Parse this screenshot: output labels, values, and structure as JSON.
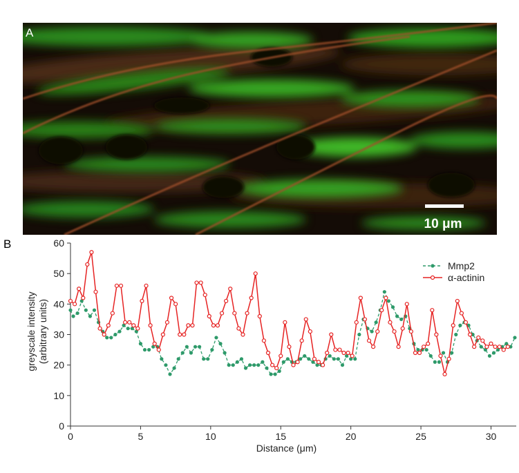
{
  "panel_a": {
    "letter": "A",
    "scale_bar_label": "10 μm"
  },
  "panel_b": {
    "letter": "B"
  },
  "chart_data": {
    "type": "line",
    "xlabel": "Distance (μm)",
    "ylabel_lines": [
      "greyscale intensity",
      "(arbitrary units)"
    ],
    "xlim": [
      0,
      31.8
    ],
    "ylim": [
      0,
      60
    ],
    "xticks": [
      0,
      5,
      10,
      15,
      20,
      25,
      30
    ],
    "yticks": [
      0,
      10,
      20,
      30,
      40,
      50,
      60
    ],
    "grid": false,
    "legend_position": "top-right",
    "series": [
      {
        "name": "Mmp2",
        "color": "#2e9a6a",
        "style": "dashed",
        "marker": "filled-circle",
        "points": [
          [
            0,
            38
          ],
          [
            0.2,
            36
          ],
          [
            0.5,
            37
          ],
          [
            0.8,
            41
          ],
          [
            1.1,
            38
          ],
          [
            1.4,
            36
          ],
          [
            1.7,
            38
          ],
          [
            2,
            34
          ],
          [
            2.3,
            31
          ],
          [
            2.6,
            29
          ],
          [
            2.9,
            29
          ],
          [
            3.2,
            30
          ],
          [
            3.5,
            31
          ],
          [
            3.8,
            33
          ],
          [
            4.1,
            32
          ],
          [
            4.4,
            32
          ],
          [
            4.7,
            31
          ],
          [
            5,
            27
          ],
          [
            5.3,
            25
          ],
          [
            5.6,
            25
          ],
          [
            5.9,
            26
          ],
          [
            6.2,
            26
          ],
          [
            6.5,
            22
          ],
          [
            6.8,
            20
          ],
          [
            7.1,
            17
          ],
          [
            7.4,
            19
          ],
          [
            7.7,
            22
          ],
          [
            8,
            24
          ],
          [
            8.3,
            26
          ],
          [
            8.6,
            24
          ],
          [
            8.9,
            26
          ],
          [
            9.2,
            26
          ],
          [
            9.5,
            22
          ],
          [
            9.8,
            22
          ],
          [
            10.1,
            25
          ],
          [
            10.4,
            29
          ],
          [
            10.7,
            27
          ],
          [
            11,
            24
          ],
          [
            11.3,
            20
          ],
          [
            11.6,
            20
          ],
          [
            11.9,
            21
          ],
          [
            12.2,
            22
          ],
          [
            12.5,
            19
          ],
          [
            12.8,
            20
          ],
          [
            13.1,
            20
          ],
          [
            13.4,
            20
          ],
          [
            13.7,
            21
          ],
          [
            14,
            19
          ],
          [
            14.3,
            17
          ],
          [
            14.6,
            17
          ],
          [
            14.9,
            18
          ],
          [
            15.2,
            21
          ],
          [
            15.5,
            22
          ],
          [
            15.8,
            21
          ],
          [
            16.1,
            21
          ],
          [
            16.4,
            22
          ],
          [
            16.7,
            23
          ],
          [
            17,
            22
          ],
          [
            17.3,
            21
          ],
          [
            17.6,
            20
          ],
          [
            17.9,
            20
          ],
          [
            18.2,
            22
          ],
          [
            18.5,
            23
          ],
          [
            18.8,
            22
          ],
          [
            19.1,
            22
          ],
          [
            19.4,
            20
          ],
          [
            19.7,
            23
          ],
          [
            20,
            22
          ],
          [
            20.3,
            22
          ],
          [
            20.6,
            30
          ],
          [
            20.9,
            35
          ],
          [
            21.2,
            32
          ],
          [
            21.5,
            31
          ],
          [
            21.8,
            34
          ],
          [
            22.1,
            38
          ],
          [
            22.4,
            44
          ],
          [
            22.7,
            41
          ],
          [
            23,
            39
          ],
          [
            23.3,
            36
          ],
          [
            23.6,
            35
          ],
          [
            23.9,
            36
          ],
          [
            24.2,
            32
          ],
          [
            24.5,
            27
          ],
          [
            24.8,
            25
          ],
          [
            25.1,
            25
          ],
          [
            25.4,
            25
          ],
          [
            25.7,
            23
          ],
          [
            26,
            21
          ],
          [
            26.3,
            21
          ],
          [
            26.6,
            24
          ],
          [
            26.9,
            21
          ],
          [
            27.2,
            24
          ],
          [
            27.5,
            30
          ],
          [
            27.8,
            33
          ],
          [
            28.1,
            34
          ],
          [
            28.4,
            33
          ],
          [
            28.7,
            30
          ],
          [
            29,
            28
          ],
          [
            29.3,
            26
          ],
          [
            29.6,
            25
          ],
          [
            29.9,
            23
          ],
          [
            30.2,
            24
          ],
          [
            30.5,
            25
          ],
          [
            30.8,
            26
          ],
          [
            31.1,
            27
          ],
          [
            31.4,
            26
          ],
          [
            31.7,
            29
          ]
        ]
      },
      {
        "name": "α-actinin",
        "color": "#e62222",
        "style": "solid",
        "marker": "open-circle",
        "points": [
          [
            0,
            41
          ],
          [
            0.3,
            40
          ],
          [
            0.6,
            45
          ],
          [
            0.9,
            42
          ],
          [
            1.2,
            53
          ],
          [
            1.5,
            57
          ],
          [
            1.8,
            44
          ],
          [
            2.1,
            32
          ],
          [
            2.4,
            30
          ],
          [
            2.7,
            33
          ],
          [
            3.0,
            37
          ],
          [
            3.3,
            46
          ],
          [
            3.6,
            46
          ],
          [
            3.9,
            34
          ],
          [
            4.2,
            34
          ],
          [
            4.5,
            33
          ],
          [
            4.8,
            32
          ],
          [
            5.1,
            41
          ],
          [
            5.4,
            46
          ],
          [
            5.7,
            33
          ],
          [
            6.0,
            27
          ],
          [
            6.3,
            25
          ],
          [
            6.6,
            30
          ],
          [
            6.9,
            34
          ],
          [
            7.2,
            42
          ],
          [
            7.5,
            40
          ],
          [
            7.8,
            30
          ],
          [
            8.1,
            30
          ],
          [
            8.4,
            33
          ],
          [
            8.7,
            33
          ],
          [
            9.0,
            47
          ],
          [
            9.3,
            47
          ],
          [
            9.6,
            43
          ],
          [
            9.9,
            36
          ],
          [
            10.2,
            33
          ],
          [
            10.5,
            33
          ],
          [
            10.8,
            37
          ],
          [
            11.1,
            41
          ],
          [
            11.4,
            45
          ],
          [
            11.7,
            37
          ],
          [
            12.0,
            32
          ],
          [
            12.3,
            30
          ],
          [
            12.6,
            37
          ],
          [
            12.9,
            42
          ],
          [
            13.2,
            50
          ],
          [
            13.5,
            36
          ],
          [
            13.8,
            28
          ],
          [
            14.1,
            24
          ],
          [
            14.4,
            20
          ],
          [
            14.7,
            19
          ],
          [
            15.0,
            23
          ],
          [
            15.3,
            34
          ],
          [
            15.6,
            26
          ],
          [
            15.9,
            20
          ],
          [
            16.2,
            21
          ],
          [
            16.5,
            28
          ],
          [
            16.8,
            35
          ],
          [
            17.1,
            31
          ],
          [
            17.4,
            22
          ],
          [
            17.7,
            21
          ],
          [
            18.0,
            20
          ],
          [
            18.3,
            24
          ],
          [
            18.6,
            30
          ],
          [
            18.9,
            25
          ],
          [
            19.2,
            25
          ],
          [
            19.5,
            24
          ],
          [
            19.8,
            24
          ],
          [
            20.1,
            23
          ],
          [
            20.4,
            34
          ],
          [
            20.7,
            42
          ],
          [
            21.0,
            35
          ],
          [
            21.3,
            28
          ],
          [
            21.6,
            26
          ],
          [
            21.9,
            31
          ],
          [
            22.2,
            38
          ],
          [
            22.5,
            42
          ],
          [
            22.8,
            34
          ],
          [
            23.1,
            31
          ],
          [
            23.4,
            26
          ],
          [
            23.7,
            32
          ],
          [
            24.0,
            40
          ],
          [
            24.3,
            31
          ],
          [
            24.6,
            24
          ],
          [
            24.9,
            24
          ],
          [
            25.2,
            26
          ],
          [
            25.5,
            27
          ],
          [
            25.8,
            38
          ],
          [
            26.1,
            30
          ],
          [
            26.4,
            23
          ],
          [
            26.7,
            17
          ],
          [
            27.0,
            22
          ],
          [
            27.3,
            33
          ],
          [
            27.6,
            41
          ],
          [
            27.9,
            37
          ],
          [
            28.2,
            34
          ],
          [
            28.5,
            30
          ],
          [
            28.8,
            26
          ],
          [
            29.1,
            29
          ],
          [
            29.4,
            28
          ],
          [
            29.7,
            26
          ],
          [
            30.0,
            27
          ],
          [
            30.3,
            26
          ],
          [
            30.6,
            26
          ],
          [
            30.9,
            25
          ],
          [
            31.2,
            26
          ]
        ]
      }
    ]
  }
}
